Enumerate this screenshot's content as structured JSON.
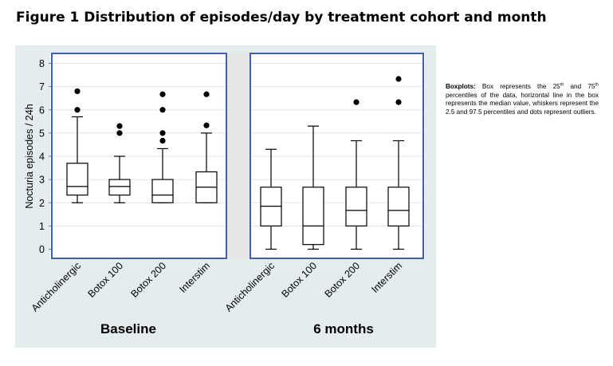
{
  "figure": {
    "title": "Figure 1 Distribution of episodes/day by treatment cohort and month"
  },
  "caption": {
    "lead": "Boxplots:",
    "text_1": " Box represents the 25",
    "sup_1": "th",
    "text_2": " and 75",
    "sup_2": "th",
    "text_3": " percentiles of the data, horizontal line in the box represents the median value, whiskers represent the 2.5 and 97.5 percentiles and dots represent outliers."
  },
  "chart_data": {
    "type": "boxplot",
    "ylabel": "Nocturia episodes / 24h",
    "ylim": [
      0,
      8
    ],
    "yticks": [
      0,
      1,
      2,
      3,
      4,
      5,
      6,
      7,
      8
    ],
    "grid": true,
    "panel_background": "#e3eded",
    "frame_color": "#4060b0",
    "groups": [
      {
        "name": "Baseline",
        "categories": [
          "Anticholinergic",
          "Botox 100",
          "Botox 200",
          "Interstim"
        ],
        "boxes": [
          {
            "whisker_low": 2.0,
            "q1": 2.33,
            "median": 2.7,
            "q3": 3.7,
            "whisker_high": 5.7,
            "outliers": [
              6.0,
              6.8
            ]
          },
          {
            "whisker_low": 2.0,
            "q1": 2.33,
            "median": 2.7,
            "q3": 3.0,
            "whisker_high": 4.0,
            "outliers": [
              5.0,
              5.3
            ]
          },
          {
            "whisker_low": 2.0,
            "q1": 2.0,
            "median": 2.33,
            "q3": 3.0,
            "whisker_high": 4.33,
            "outliers": [
              4.67,
              5.0,
              6.0,
              6.67
            ]
          },
          {
            "whisker_low": 2.0,
            "q1": 2.0,
            "median": 2.67,
            "q3": 3.33,
            "whisker_high": 5.0,
            "outliers": [
              5.33,
              6.67
            ]
          }
        ]
      },
      {
        "name": "6 months",
        "categories": [
          "Anticholinergic",
          "Botox 100",
          "Botox 200",
          "Interstim"
        ],
        "boxes": [
          {
            "whisker_low": 0.0,
            "q1": 1.0,
            "median": 1.85,
            "q3": 2.67,
            "whisker_high": 4.3,
            "outliers": []
          },
          {
            "whisker_low": 0.0,
            "q1": 0.2,
            "median": 1.0,
            "q3": 2.67,
            "whisker_high": 5.3,
            "outliers": []
          },
          {
            "whisker_low": 0.0,
            "q1": 1.0,
            "median": 1.67,
            "q3": 2.67,
            "whisker_high": 4.67,
            "outliers": [
              6.33
            ]
          },
          {
            "whisker_low": 0.0,
            "q1": 1.0,
            "median": 1.67,
            "q3": 2.67,
            "whisker_high": 4.67,
            "outliers": [
              6.33,
              7.33
            ]
          }
        ]
      }
    ]
  }
}
